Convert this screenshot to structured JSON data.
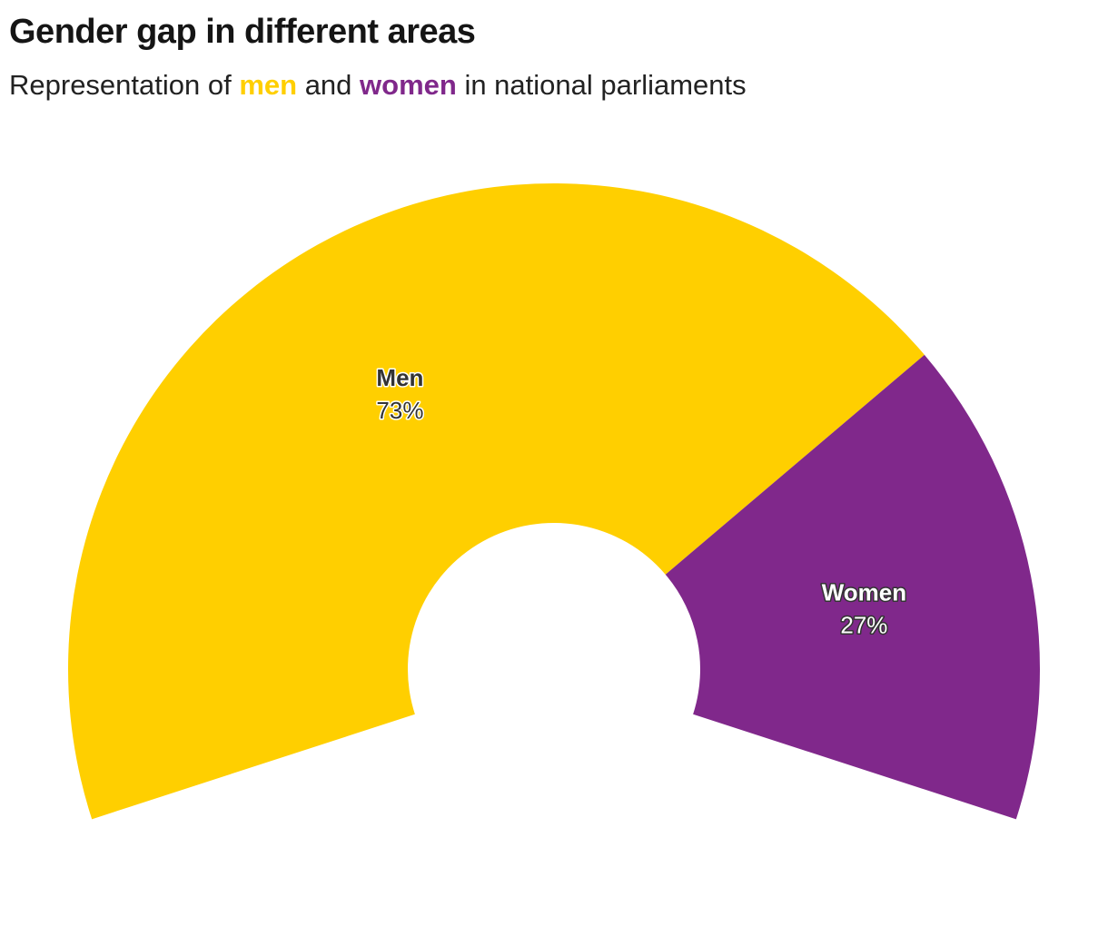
{
  "header": {
    "title": "Gender gap in different areas",
    "subtitle_parts": [
      {
        "text": "Representation of "
      },
      {
        "text": "men",
        "color": "#ffcf00"
      },
      {
        "text": " and "
      },
      {
        "text": "women",
        "color": "#80288b"
      },
      {
        "text": " in national parliaments"
      }
    ]
  },
  "chart_data": {
    "type": "pie",
    "variant": "semi-donut",
    "title": "Gender gap in different areas",
    "subtitle": "Representation of men and women in national parliaments",
    "total_angle_degrees": 216,
    "slices": [
      {
        "name": "Men",
        "value": 73,
        "value_label": "73%",
        "color": "#ffcf00",
        "text_color": "#333333",
        "halo_color": "#ffffff"
      },
      {
        "name": "Women",
        "value": 27,
        "value_label": "27%",
        "color": "#80288b",
        "text_color": "#ffffff",
        "halo_color": "#333333"
      }
    ]
  }
}
